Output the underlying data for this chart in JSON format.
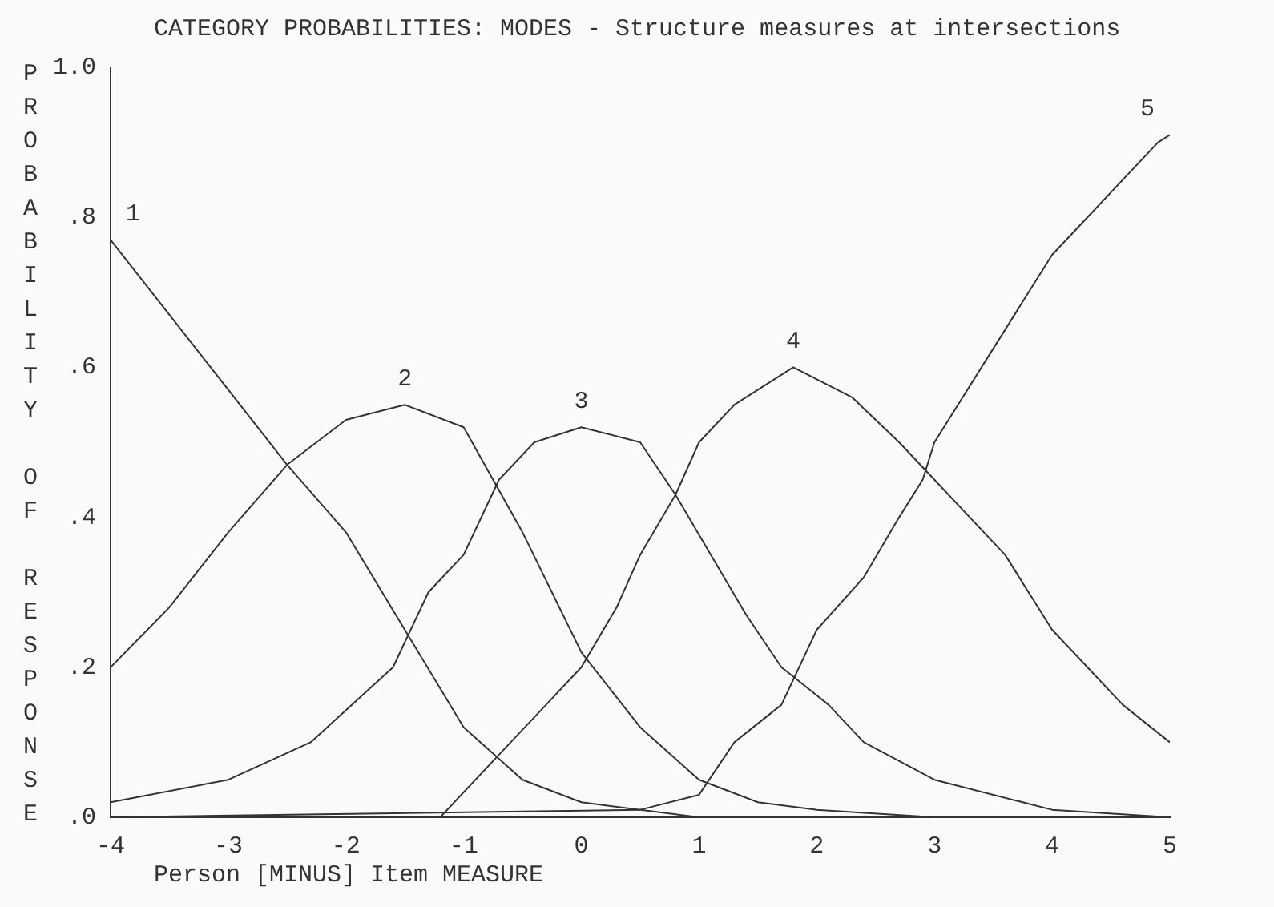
{
  "chart_data": {
    "type": "line",
    "title": "CATEGORY PROBABILITIES: MODES - Structure measures at intersections",
    "xlabel": "Person [MINUS] Item MEASURE",
    "ylabel": "PROBABILITY OF RESPONSE",
    "xlim": [
      -4,
      5
    ],
    "xticks": [
      -4,
      -3,
      -2,
      -1,
      0,
      1,
      2,
      3,
      4,
      5
    ],
    "ylim": [
      0,
      1
    ],
    "yticks": [
      {
        "value": 0,
        "label": ".0"
      },
      {
        "value": 0.2,
        "label": ".2"
      },
      {
        "value": 0.4,
        "label": ".4"
      },
      {
        "value": 0.6,
        "label": ".6"
      },
      {
        "value": 0.8,
        "label": ".8"
      },
      {
        "value": 1,
        "label": "1.0"
      }
    ],
    "grid": false,
    "legend": false,
    "series": [
      {
        "name": "1",
        "color": "#333333",
        "x": [
          -4,
          -3.5,
          -3,
          -2.5,
          -2,
          -1.5,
          -1,
          -0.5,
          0,
          1,
          5
        ],
        "values": [
          0.77,
          0.67,
          0.57,
          0.47,
          0.38,
          0.25,
          0.12,
          0.05,
          0.02,
          0,
          0
        ]
      },
      {
        "name": "2",
        "color": "#333333",
        "x": [
          -4,
          -3.5,
          -3,
          -2.5,
          -2,
          -1.5,
          -1,
          -0.5,
          0,
          0.5,
          1,
          1.5,
          2,
          3,
          5
        ],
        "values": [
          0.2,
          0.28,
          0.38,
          0.47,
          0.53,
          0.55,
          0.52,
          0.38,
          0.22,
          0.12,
          0.05,
          0.02,
          0.01,
          0,
          0
        ]
      },
      {
        "name": "3",
        "color": "#333333",
        "x": [
          -4,
          -3,
          -2.3,
          -1.6,
          -1.3,
          -1,
          -0.7,
          -0.4,
          0,
          0.5,
          0.8,
          1.1,
          1.4,
          1.7,
          2.1,
          2.4,
          3,
          4,
          5
        ],
        "values": [
          0.02,
          0.05,
          0.1,
          0.2,
          0.3,
          0.35,
          0.45,
          0.5,
          0.52,
          0.5,
          0.43,
          0.35,
          0.27,
          0.2,
          0.15,
          0.1,
          0.05,
          0.01,
          0
        ]
      },
      {
        "name": "4",
        "color": "#333333",
        "x": [
          -4,
          -1.2,
          -0.6,
          -0.3,
          0,
          0.3,
          0.5,
          0.8,
          1,
          1.3,
          1.8,
          2.3,
          2.7,
          3,
          3.3,
          3.6,
          3.8,
          4,
          4.3,
          4.6,
          5
        ],
        "values": [
          0,
          0,
          0.1,
          0.15,
          0.2,
          0.28,
          0.35,
          0.43,
          0.5,
          0.55,
          0.6,
          0.56,
          0.5,
          0.45,
          0.4,
          0.35,
          0.3,
          0.25,
          0.2,
          0.15,
          0.1
        ]
      },
      {
        "name": "5",
        "color": "#333333",
        "x": [
          -4,
          0.5,
          1,
          1.3,
          1.7,
          2,
          2.4,
          2.7,
          2.9,
          3,
          3.2,
          3.4,
          3.6,
          3.8,
          4,
          4.3,
          4.6,
          4.9,
          5
        ],
        "values": [
          0,
          0.01,
          0.03,
          0.1,
          0.15,
          0.25,
          0.32,
          0.4,
          0.45,
          0.5,
          0.55,
          0.6,
          0.65,
          0.7,
          0.75,
          0.8,
          0.85,
          0.9,
          0.91
        ]
      }
    ]
  }
}
